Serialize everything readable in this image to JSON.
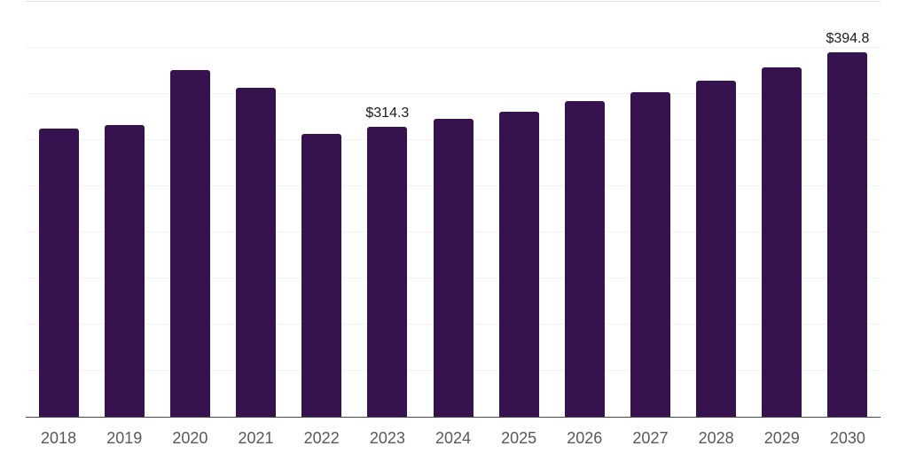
{
  "chart_data": {
    "type": "bar",
    "title": "",
    "xlabel": "",
    "ylabel": "",
    "categories": [
      "2018",
      "2019",
      "2020",
      "2021",
      "2022",
      "2023",
      "2024",
      "2025",
      "2026",
      "2027",
      "2028",
      "2029",
      "2030"
    ],
    "values": [
      312.6,
      315.9,
      375.7,
      356.5,
      306.4,
      314.3,
      322.9,
      330.9,
      342.7,
      352.3,
      364.4,
      378.8,
      394.8
    ],
    "value_labels": {
      "2023": "$314.3",
      "2030": "$394.8"
    },
    "ylim": [
      0,
      450
    ],
    "gridline_step": 50,
    "grid": "on",
    "legend": "none",
    "y_tick_labels_visible": false,
    "colors": {
      "bar": "#36124F",
      "axis_line": "#4a4a4a",
      "gridline": "#f4f4f4",
      "top_gridline": "#e3e3e3",
      "x_tick_label": "#595959",
      "value_label": "#1c1c1c",
      "background": "#ffffff"
    }
  }
}
